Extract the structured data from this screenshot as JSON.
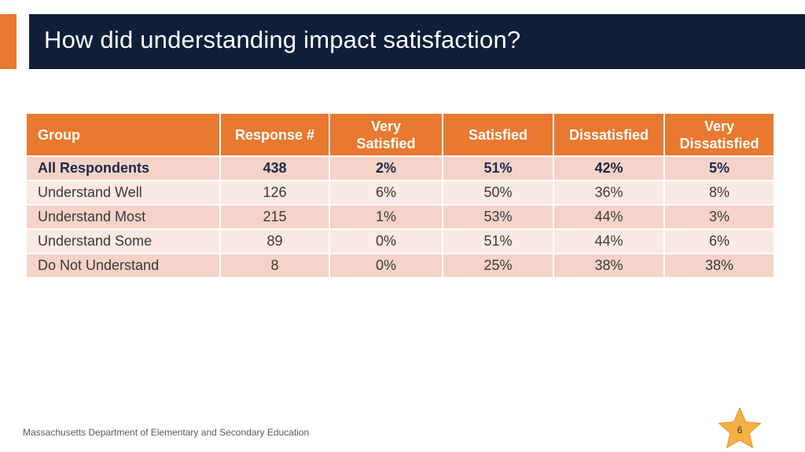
{
  "slide": {
    "title": "How did understanding impact satisfaction?"
  },
  "table": {
    "headers": [
      {
        "line1": "Group",
        "line2": ""
      },
      {
        "line1": "Response #",
        "line2": ""
      },
      {
        "line1": "Very",
        "line2": "Satisfied"
      },
      {
        "line1": "Satisfied",
        "line2": ""
      },
      {
        "line1": "Dissatisfied",
        "line2": ""
      },
      {
        "line1": "Very",
        "line2": "Dissatisfied"
      }
    ],
    "rows": [
      {
        "group": "All Respondents",
        "responses": "438",
        "very_satisfied": "2%",
        "satisfied": "51%",
        "dissatisfied": "42%",
        "very_dissatisfied": "5%"
      },
      {
        "group": "Understand Well",
        "responses": "126",
        "very_satisfied": "6%",
        "satisfied": "50%",
        "dissatisfied": "36%",
        "very_dissatisfied": "8%"
      },
      {
        "group": "Understand Most",
        "responses": "215",
        "very_satisfied": "1%",
        "satisfied": "53%",
        "dissatisfied": "44%",
        "very_dissatisfied": "3%"
      },
      {
        "group": "Understand Some",
        "responses": "89",
        "very_satisfied": "0%",
        "satisfied": "51%",
        "dissatisfied": "44%",
        "very_dissatisfied": "6%"
      },
      {
        "group": "Do Not Understand",
        "responses": "8",
        "very_satisfied": "0%",
        "satisfied": "25%",
        "dissatisfied": "38%",
        "very_dissatisfied": "38%"
      }
    ]
  },
  "footer": {
    "organization": "Massachusetts Department of Elementary and Secondary Education",
    "page_number": "6",
    "badge_icon": "star-icon"
  },
  "colors": {
    "title_band": "#0f1f3a",
    "accent": "#e8792f",
    "row_dark": "#f5d3c8",
    "row_light": "#fae9e4",
    "star": "#f5b041"
  }
}
